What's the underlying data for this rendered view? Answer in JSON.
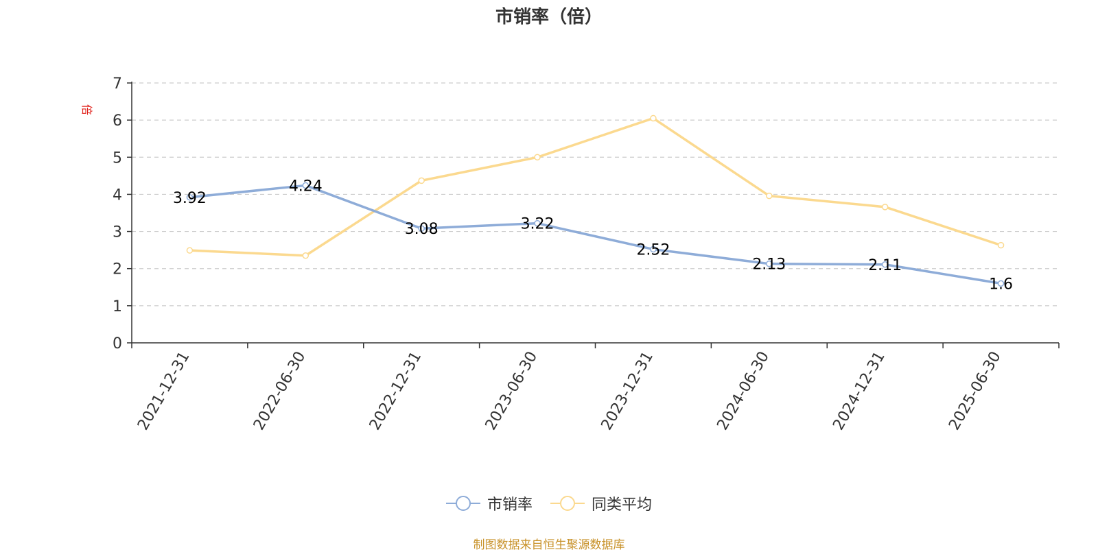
{
  "source_note": "制图数据来自恒生聚源数据库",
  "colors": {
    "series1": "#8eacd8",
    "series2": "#fbd98f",
    "axis": "#333333",
    "grid": "#cccccc",
    "unit": "#e0211b"
  },
  "chart_data": {
    "type": "line",
    "title": "市销率（倍）",
    "ylabel": "倍",
    "xlabel": "",
    "ylim": [
      0,
      7
    ],
    "yticks": [
      0,
      1,
      2,
      3,
      4,
      5,
      6,
      7
    ],
    "grid": true,
    "legend_position": "bottom-center",
    "categories": [
      "2021-12-31",
      "2022-06-30",
      "2022-12-31",
      "2023-06-30",
      "2023-12-31",
      "2024-06-30",
      "2024-12-31",
      "2025-06-30"
    ],
    "series": [
      {
        "name": "市销率",
        "values": [
          3.92,
          4.24,
          3.08,
          3.22,
          2.52,
          2.13,
          2.11,
          1.6
        ],
        "labels": [
          "3.92",
          "4.24",
          "3.08",
          "3.22",
          "2.52",
          "2.13",
          "2.11",
          "1.6"
        ]
      },
      {
        "name": "同类平均",
        "values": [
          2.49,
          2.35,
          4.37,
          5.0,
          6.05,
          3.96,
          3.66,
          2.63
        ]
      }
    ]
  }
}
